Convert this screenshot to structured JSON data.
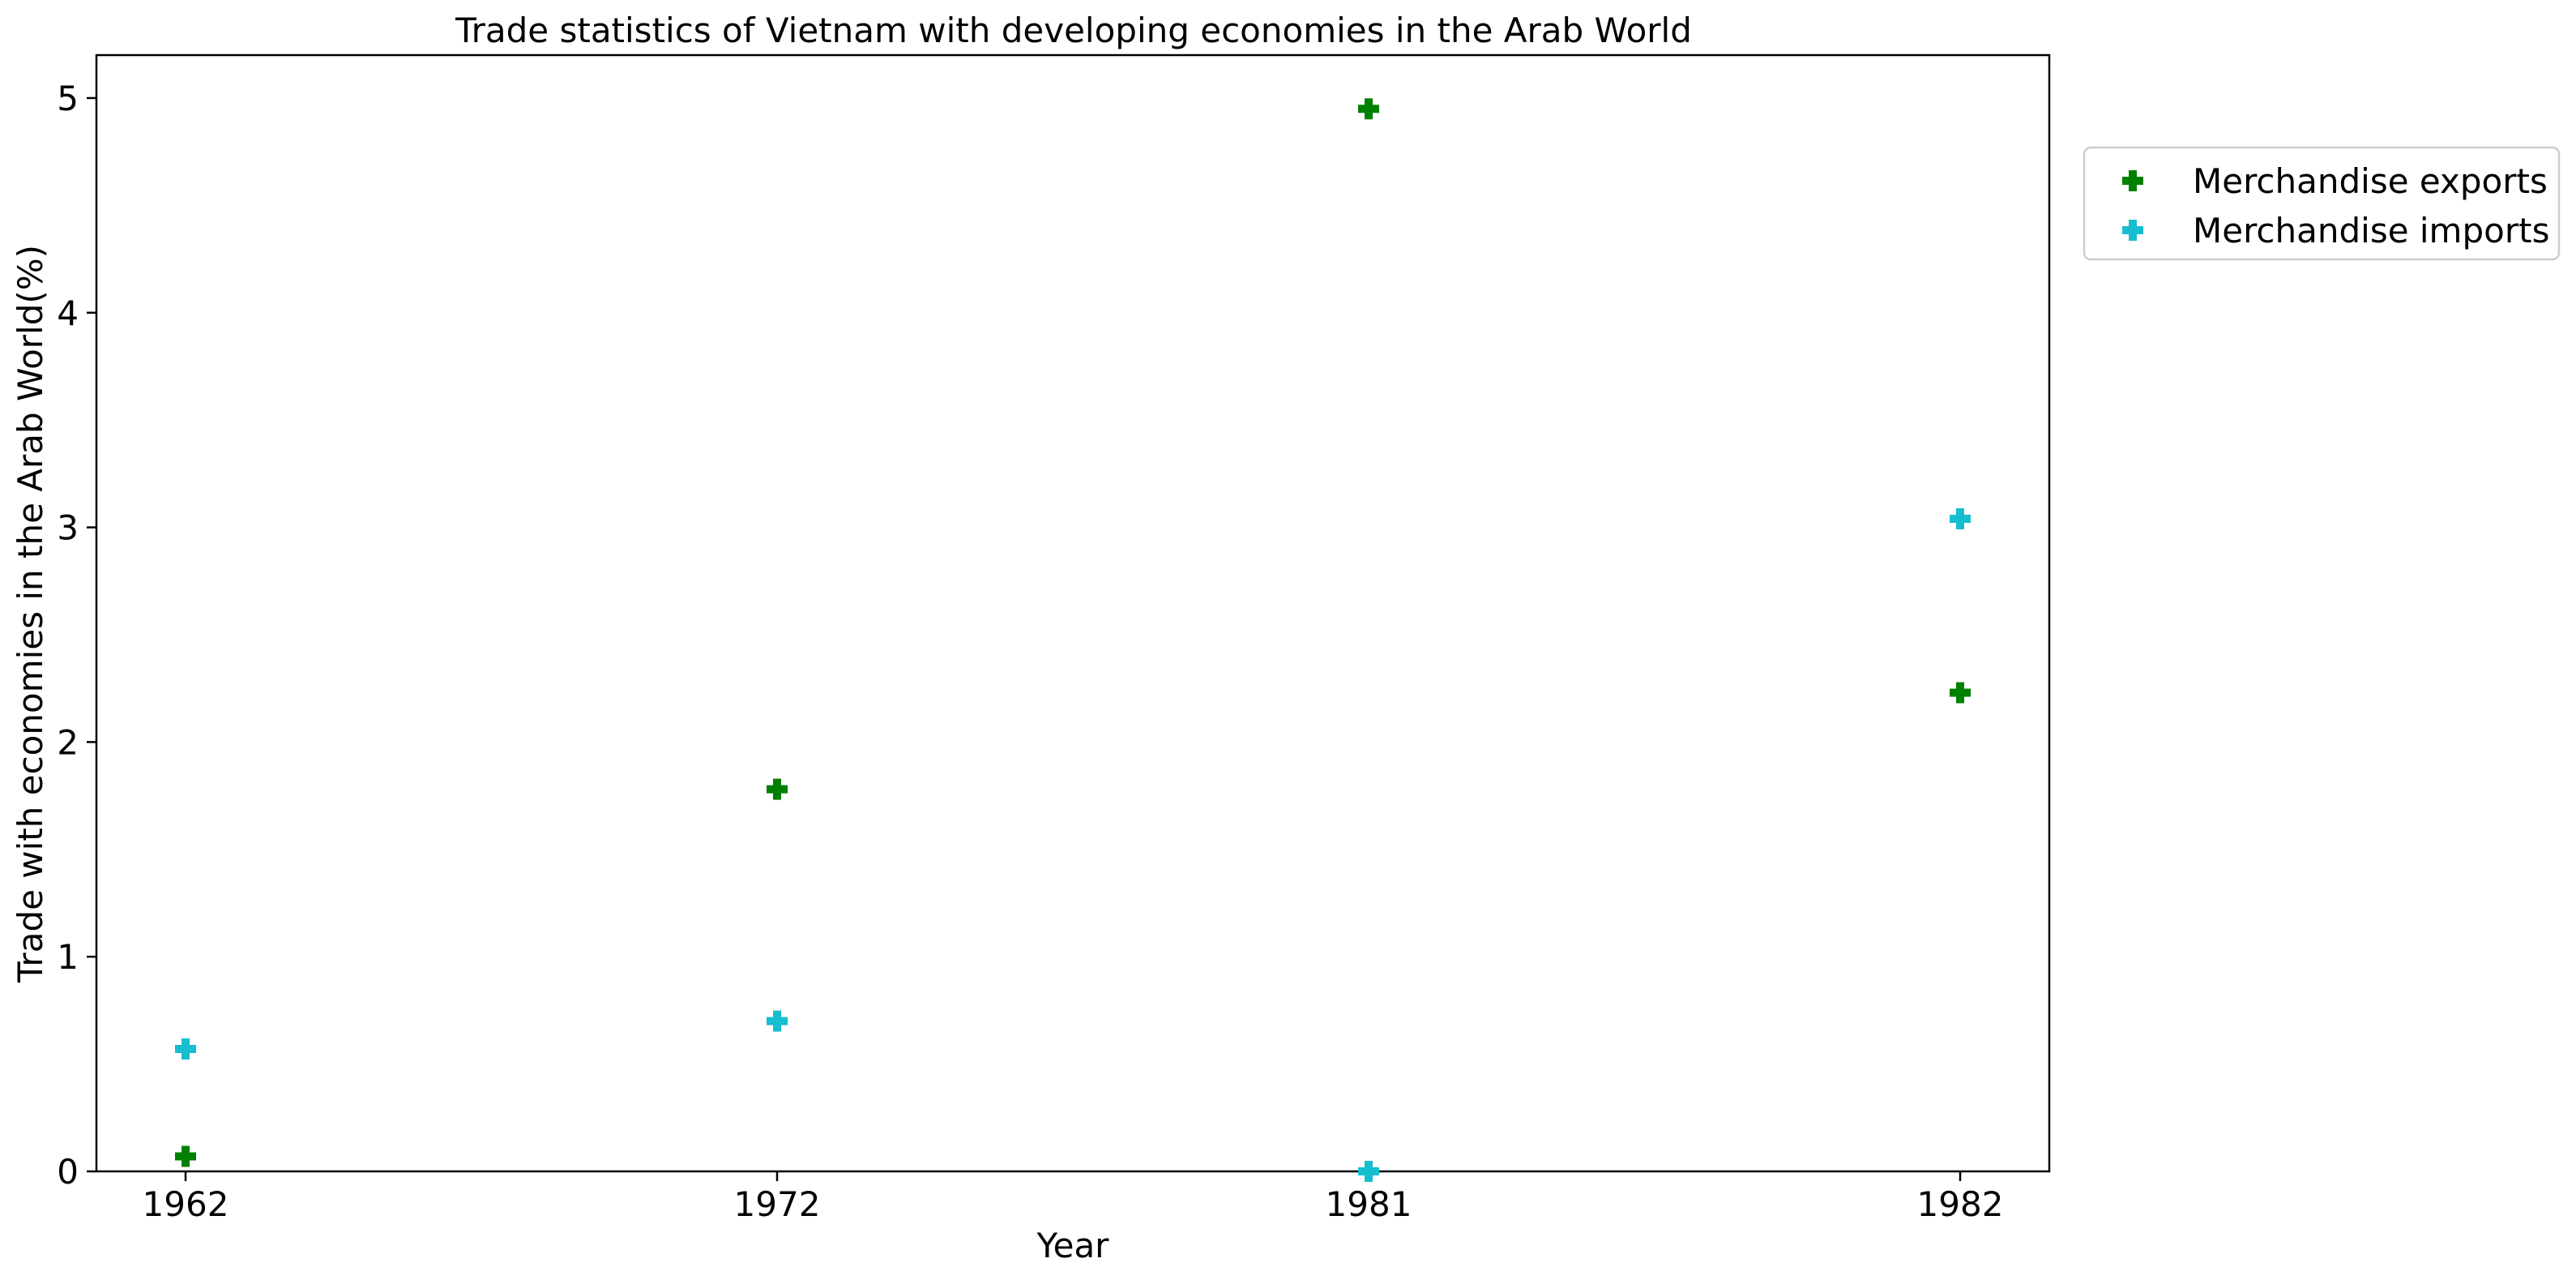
{
  "chart_data": {
    "type": "scatter",
    "title": "Trade statistics of Vietnam with developing economies in the Arab World",
    "xlabel": "Year",
    "ylabel": "Trade with economies in the Arab World(%)",
    "categories": [
      "1962",
      "1972",
      "1981",
      "1982"
    ],
    "ylim": [
      0,
      5.2
    ],
    "yticks": [
      "0",
      "1",
      "2",
      "3",
      "4",
      "5"
    ],
    "grid": false,
    "legend_position": "outside-top-right",
    "marker": "plus",
    "series": [
      {
        "name": "Merchandise exports",
        "color": "#008000",
        "values": [
          0.07,
          1.78,
          4.95,
          2.23
        ]
      },
      {
        "name": "Merchandise imports",
        "color": "#17becf",
        "values": [
          0.57,
          0.7,
          0.0,
          3.04
        ]
      }
    ]
  }
}
